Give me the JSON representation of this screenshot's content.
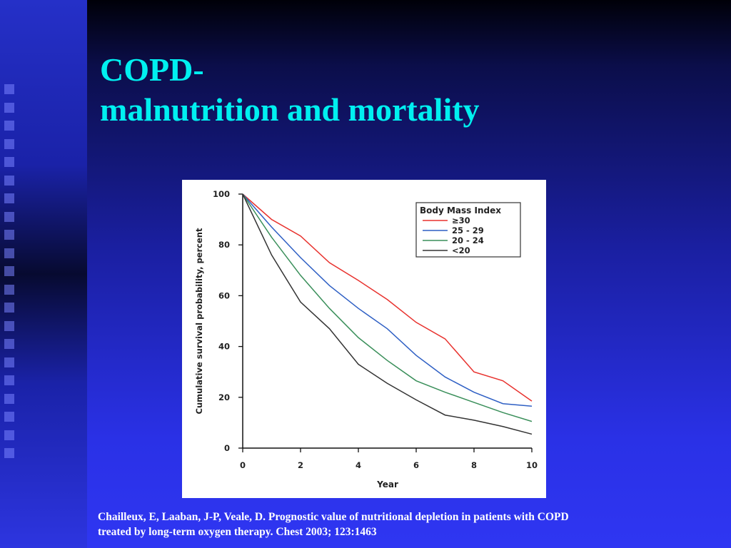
{
  "slide": {
    "title_line1": "COPD-",
    "title_line2": "malnutrition and mortality",
    "citation_line1": "Chailleux, E, Laaban, J-P, Veale, D. Prognostic value of nutritional depletion in patients with COPD",
    "citation_line2": "treated by long-term oxygen therapy. Chest 2003; 123:1463"
  },
  "chart_data": {
    "type": "line",
    "title": "",
    "xlabel": "Year",
    "ylabel": "Cumulative survival probability, percent",
    "xlim": [
      0,
      10
    ],
    "ylim": [
      0,
      100
    ],
    "x_ticks": [
      0,
      2,
      4,
      6,
      8,
      10
    ],
    "y_ticks": [
      0,
      20,
      40,
      60,
      80,
      100
    ],
    "grid": false,
    "legend_title": "Body Mass Index",
    "legend_position": "top-right",
    "x": [
      0,
      1,
      2,
      3,
      4,
      5,
      6,
      7,
      8,
      9,
      10
    ],
    "series": [
      {
        "name": "≥30",
        "color": "#e8322e",
        "values": [
          100,
          90,
          83.5,
          73,
          66,
          58.5,
          49.5,
          43,
          30,
          26.5,
          18.5
        ]
      },
      {
        "name": "25 - 29",
        "color": "#2e5fc4",
        "values": [
          100,
          87,
          75,
          64,
          55,
          47,
          36.5,
          28,
          22,
          17.5,
          16.5
        ]
      },
      {
        "name": "20 - 24",
        "color": "#3a8f5a",
        "values": [
          100,
          83,
          68,
          55,
          43.5,
          34.5,
          26.5,
          22,
          18,
          14,
          10.5
        ]
      },
      {
        "name": "<20",
        "color": "#333333",
        "values": [
          100,
          76,
          57.5,
          47,
          33,
          25.5,
          19,
          13,
          11,
          8.5,
          5.5
        ]
      }
    ]
  }
}
